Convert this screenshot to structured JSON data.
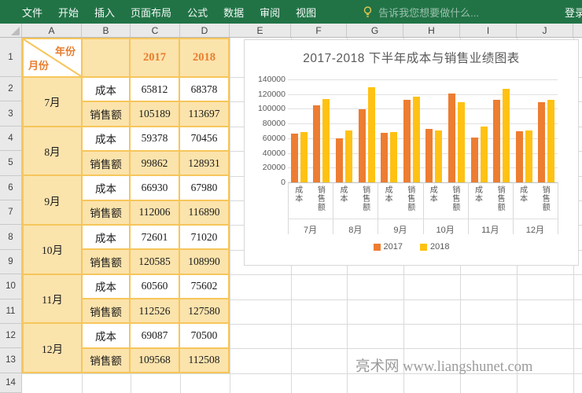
{
  "menu": {
    "items": [
      "文件",
      "开始",
      "插入",
      "页面布局",
      "公式",
      "数据",
      "审阅",
      "视图"
    ],
    "search_placeholder": "告诉我您想要做什么...",
    "login_label": "登录"
  },
  "sheet": {
    "column_letters": [
      "A",
      "B",
      "C",
      "D",
      "E",
      "F",
      "G",
      "H",
      "I",
      "J"
    ],
    "row_numbers": [
      "1",
      "2",
      "3",
      "4",
      "5",
      "6",
      "7",
      "8",
      "9",
      "10",
      "11",
      "12",
      "13",
      "14"
    ]
  },
  "table": {
    "corner": {
      "year_label": "年份",
      "month_label": "月份"
    },
    "year_headers": [
      "2017",
      "2018"
    ],
    "metric_labels": [
      "成本",
      "销售额"
    ],
    "months": [
      {
        "name": "7月",
        "cost_2017": "65812",
        "cost_2018": "68378",
        "sales_2017": "105189",
        "sales_2018": "113697"
      },
      {
        "name": "8月",
        "cost_2017": "59378",
        "cost_2018": "70456",
        "sales_2017": "99862",
        "sales_2018": "128931"
      },
      {
        "name": "9月",
        "cost_2017": "66930",
        "cost_2018": "67980",
        "sales_2017": "112006",
        "sales_2018": "116890"
      },
      {
        "name": "10月",
        "cost_2017": "72601",
        "cost_2018": "71020",
        "sales_2017": "120585",
        "sales_2018": "108990"
      },
      {
        "name": "11月",
        "cost_2017": "60560",
        "cost_2018": "75602",
        "sales_2017": "112526",
        "sales_2018": "127580"
      },
      {
        "name": "12月",
        "cost_2017": "69087",
        "cost_2018": "70500",
        "sales_2017": "109568",
        "sales_2018": "112508"
      }
    ]
  },
  "chart_data": {
    "type": "bar",
    "title": "2017-2018 下半年成本与销售业绩图表",
    "group_labels": [
      "7月",
      "8月",
      "9月",
      "10月",
      "11月",
      "12月"
    ],
    "subcategories": [
      "成本",
      "销售额"
    ],
    "series": [
      {
        "name": "2017",
        "color": "#ED7D31",
        "values": [
          65812,
          105189,
          59378,
          99862,
          66930,
          112006,
          72601,
          120585,
          60560,
          112526,
          69087,
          109568
        ]
      },
      {
        "name": "2018",
        "color": "#FFC213",
        "values": [
          68378,
          113697,
          70456,
          128931,
          67980,
          116890,
          71020,
          108990,
          75602,
          127580,
          70500,
          112508
        ]
      }
    ],
    "ylim": [
      0,
      140000
    ],
    "ytick_step": 20000,
    "grid": true,
    "legend_position": "bottom"
  },
  "watermark": {
    "text": "亮术网 www.liangshunet.com"
  },
  "colors": {
    "menubar_green": "#217346",
    "table_fill": "#FBE3AC",
    "table_border": "#F6C65B",
    "accent_orange_text": "#E87D2E",
    "gridline": "#D9D9D9",
    "chart_text": "#595959"
  }
}
